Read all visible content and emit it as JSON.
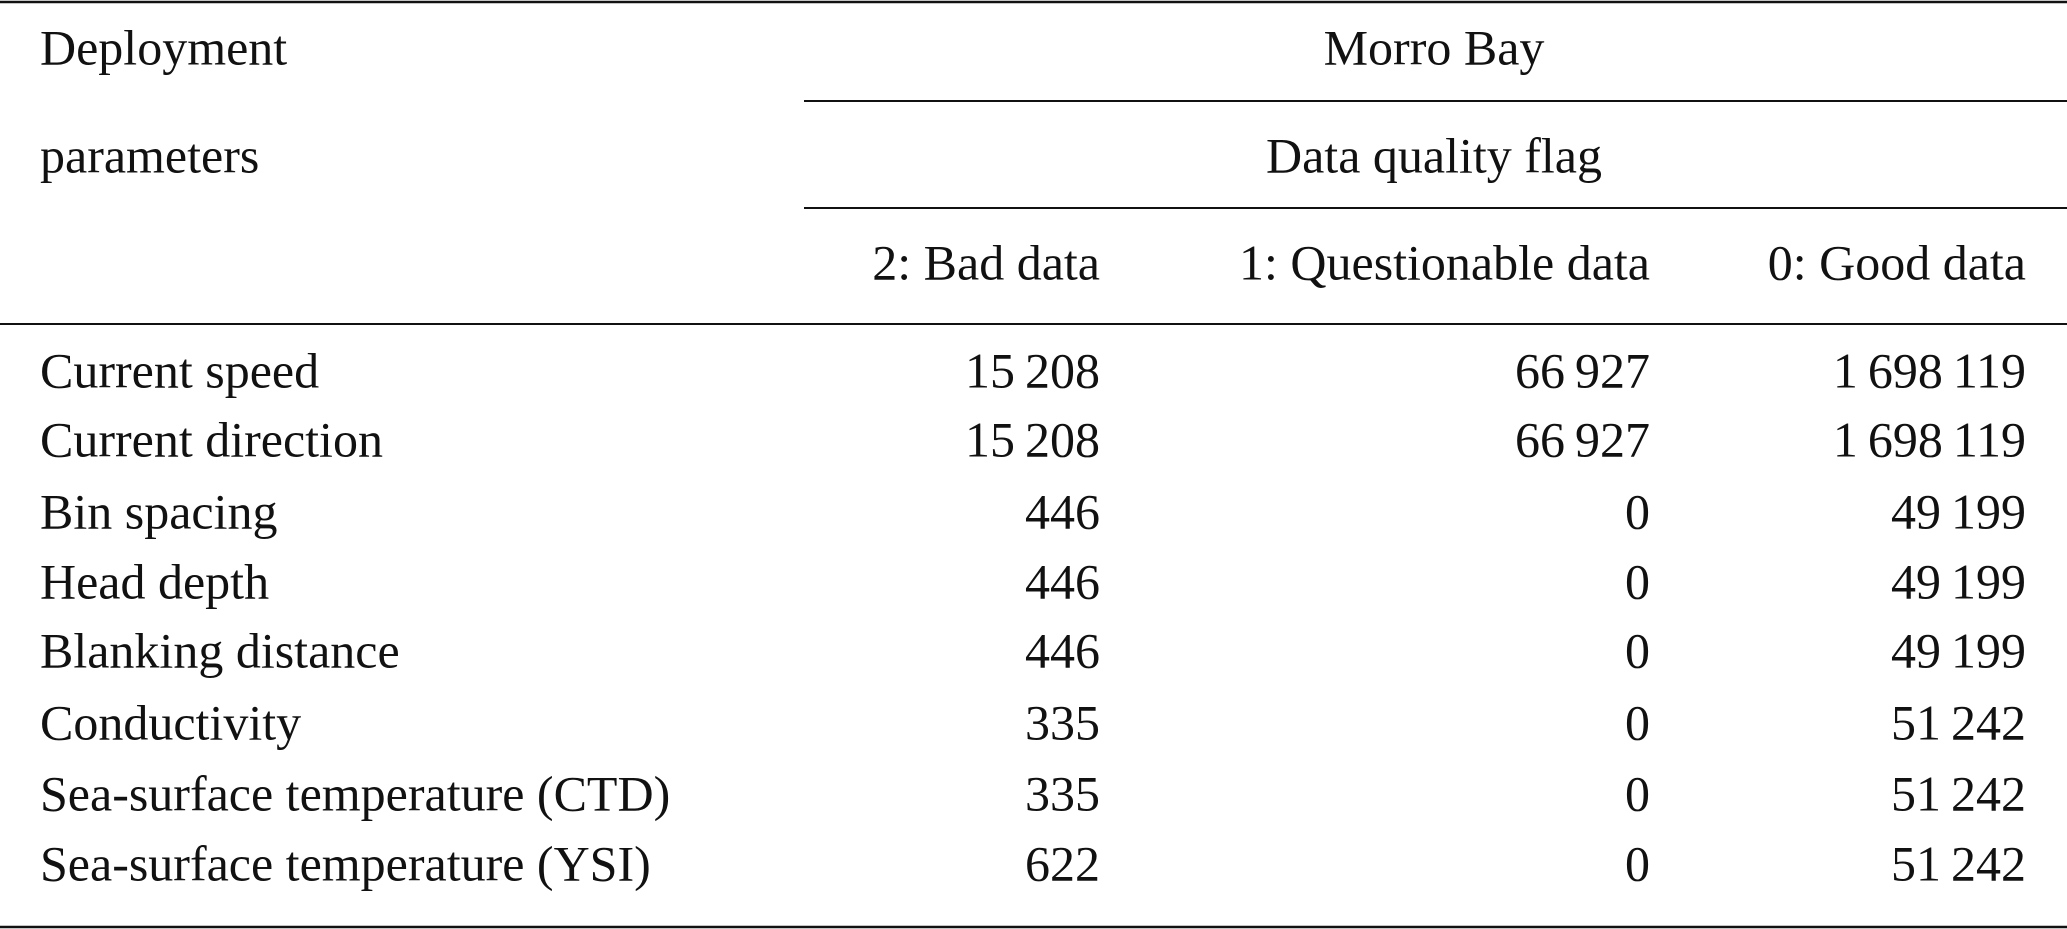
{
  "table": {
    "header": {
      "stub": [
        "Deployment",
        "parameters"
      ],
      "group": "Morro Bay",
      "subgroup": "Data quality flag",
      "columns": [
        "2: Bad data",
        "1: Questionable data",
        "0: Good data"
      ]
    },
    "rows": [
      [
        "Current speed",
        "15 208",
        "66 927",
        "1 698 119"
      ],
      [
        "Current direction",
        "15 208",
        "66 927",
        "1 698 119"
      ],
      [
        "Bin spacing",
        "446",
        "0",
        "49 199"
      ],
      [
        "Head depth",
        "446",
        "0",
        "49 199"
      ],
      [
        "Blanking distance",
        "446",
        "0",
        "49 199"
      ],
      [
        "Conductivity",
        "335",
        "0",
        "51 242"
      ],
      [
        "Sea-surface temperature (CTD)",
        "335",
        "0",
        "51 242"
      ],
      [
        "Sea-surface temperature (YSI)",
        "622",
        "0",
        "51 242"
      ]
    ]
  }
}
